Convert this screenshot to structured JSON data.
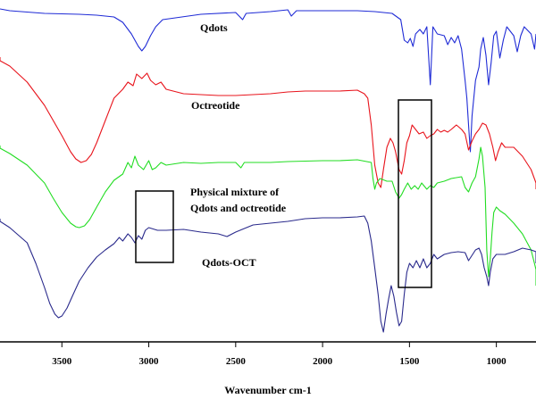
{
  "chart_data": {
    "type": "line",
    "title": "",
    "xlabel": "Wavenumber cm-1",
    "ylabel": "",
    "x_range": [
      4000,
      700
    ],
    "x_reversed": true,
    "x_ticks": [
      3500,
      3000,
      2500,
      2000,
      1500,
      1000
    ],
    "grid": false,
    "legend": "none",
    "series": [
      {
        "name": "Qdots",
        "color": "#1f2bd6",
        "points": [
          [
            4000,
            10
          ],
          [
            3800,
            12
          ],
          [
            3600,
            15
          ],
          [
            3400,
            16
          ],
          [
            3300,
            17
          ],
          [
            3200,
            19
          ],
          [
            3150,
            25
          ],
          [
            3100,
            38
          ],
          [
            3060,
            52
          ],
          [
            3040,
            57
          ],
          [
            3020,
            52
          ],
          [
            2990,
            40
          ],
          [
            2960,
            30
          ],
          [
            2920,
            22
          ],
          [
            2700,
            16
          ],
          [
            2500,
            14
          ],
          [
            2460,
            22
          ],
          [
            2440,
            15
          ],
          [
            2300,
            13
          ],
          [
            2200,
            11
          ],
          [
            2180,
            18
          ],
          [
            2150,
            12
          ],
          [
            2000,
            12
          ],
          [
            1800,
            12
          ],
          [
            1700,
            13
          ],
          [
            1600,
            15
          ],
          [
            1550,
            22
          ],
          [
            1530,
            45
          ],
          [
            1510,
            48
          ],
          [
            1495,
            43
          ],
          [
            1480,
            52
          ],
          [
            1465,
            38
          ],
          [
            1440,
            33
          ],
          [
            1420,
            38
          ],
          [
            1400,
            30
          ],
          [
            1380,
            95
          ],
          [
            1365,
            30
          ],
          [
            1340,
            38
          ],
          [
            1300,
            40
          ],
          [
            1280,
            50
          ],
          [
            1260,
            42
          ],
          [
            1240,
            48
          ],
          [
            1220,
            40
          ],
          [
            1200,
            55
          ],
          [
            1180,
            90
          ],
          [
            1170,
            110
          ],
          [
            1160,
            140
          ],
          [
            1150,
            170
          ],
          [
            1140,
            130
          ],
          [
            1120,
            90
          ],
          [
            1100,
            75
          ],
          [
            1090,
            55
          ],
          [
            1075,
            42
          ],
          [
            1060,
            62
          ],
          [
            1045,
            95
          ],
          [
            1030,
            70
          ],
          [
            1015,
            40
          ],
          [
            1000,
            35
          ],
          [
            980,
            65
          ],
          [
            960,
            45
          ],
          [
            940,
            30
          ],
          [
            900,
            40
          ],
          [
            880,
            58
          ],
          [
            860,
            40
          ],
          [
            840,
            30
          ],
          [
            800,
            38
          ],
          [
            780,
            55
          ],
          [
            760,
            38
          ],
          [
            700,
            38
          ]
        ]
      },
      {
        "name": "Octreotide",
        "color": "#e8141c",
        "points": [
          [
            4000,
            64
          ],
          [
            3900,
            68
          ],
          [
            3800,
            74
          ],
          [
            3700,
            92
          ],
          [
            3600,
            118
          ],
          [
            3500,
            152
          ],
          [
            3450,
            170
          ],
          [
            3420,
            178
          ],
          [
            3390,
            182
          ],
          [
            3360,
            180
          ],
          [
            3330,
            173
          ],
          [
            3300,
            160
          ],
          [
            3250,
            135
          ],
          [
            3200,
            110
          ],
          [
            3150,
            100
          ],
          [
            3120,
            92
          ],
          [
            3090,
            96
          ],
          [
            3070,
            83
          ],
          [
            3040,
            88
          ],
          [
            3010,
            82
          ],
          [
            2990,
            90
          ],
          [
            2960,
            95
          ],
          [
            2930,
            92
          ],
          [
            2900,
            100
          ],
          [
            2800,
            105
          ],
          [
            2600,
            107
          ],
          [
            2500,
            107
          ],
          [
            2300,
            105
          ],
          [
            2200,
            103
          ],
          [
            2100,
            102
          ],
          [
            1900,
            102
          ],
          [
            1800,
            101
          ],
          [
            1760,
            105
          ],
          [
            1740,
            110
          ],
          [
            1720,
            140
          ],
          [
            1700,
            185
          ],
          [
            1680,
            205
          ],
          [
            1665,
            210
          ],
          [
            1650,
            190
          ],
          [
            1630,
            165
          ],
          [
            1610,
            155
          ],
          [
            1595,
            160
          ],
          [
            1580,
            170
          ],
          [
            1560,
            190
          ],
          [
            1545,
            195
          ],
          [
            1530,
            180
          ],
          [
            1515,
            160
          ],
          [
            1500,
            152
          ],
          [
            1485,
            140
          ],
          [
            1465,
            145
          ],
          [
            1445,
            150
          ],
          [
            1420,
            148
          ],
          [
            1400,
            155
          ],
          [
            1380,
            152
          ],
          [
            1360,
            150
          ],
          [
            1340,
            145
          ],
          [
            1320,
            148
          ],
          [
            1300,
            146
          ],
          [
            1280,
            148
          ],
          [
            1260,
            145
          ],
          [
            1230,
            140
          ],
          [
            1200,
            145
          ],
          [
            1180,
            150
          ],
          [
            1160,
            168
          ],
          [
            1140,
            158
          ],
          [
            1120,
            150
          ],
          [
            1100,
            145
          ],
          [
            1080,
            138
          ],
          [
            1060,
            140
          ],
          [
            1040,
            150
          ],
          [
            1020,
            165
          ],
          [
            1005,
            180
          ],
          [
            990,
            170
          ],
          [
            970,
            160
          ],
          [
            950,
            165
          ],
          [
            900,
            165
          ],
          [
            850,
            175
          ],
          [
            800,
            190
          ],
          [
            760,
            205
          ],
          [
            740,
            212
          ]
        ]
      },
      {
        "name": "Physical mixture of Qdots and octreotide",
        "color": "#22dd22",
        "points": [
          [
            4000,
            163
          ],
          [
            3900,
            166
          ],
          [
            3800,
            172
          ],
          [
            3700,
            185
          ],
          [
            3600,
            205
          ],
          [
            3550,
            222
          ],
          [
            3500,
            238
          ],
          [
            3450,
            250
          ],
          [
            3420,
            254
          ],
          [
            3400,
            255
          ],
          [
            3370,
            253
          ],
          [
            3340,
            246
          ],
          [
            3300,
            232
          ],
          [
            3250,
            215
          ],
          [
            3200,
            202
          ],
          [
            3150,
            195
          ],
          [
            3120,
            182
          ],
          [
            3100,
            188
          ],
          [
            3080,
            175
          ],
          [
            3060,
            185
          ],
          [
            3030,
            190
          ],
          [
            3000,
            180
          ],
          [
            2980,
            190
          ],
          [
            2960,
            188
          ],
          [
            2930,
            182
          ],
          [
            2900,
            185
          ],
          [
            2800,
            182
          ],
          [
            2700,
            183
          ],
          [
            2600,
            182
          ],
          [
            2500,
            182
          ],
          [
            2470,
            188
          ],
          [
            2450,
            182
          ],
          [
            2300,
            182
          ],
          [
            2200,
            181
          ],
          [
            2000,
            180
          ],
          [
            1900,
            180
          ],
          [
            1800,
            179
          ],
          [
            1720,
            182
          ],
          [
            1710,
            200
          ],
          [
            1700,
            212
          ],
          [
            1690,
            205
          ],
          [
            1670,
            200
          ],
          [
            1630,
            203
          ],
          [
            1600,
            203
          ],
          [
            1580,
            215
          ],
          [
            1560,
            222
          ],
          [
            1545,
            218
          ],
          [
            1530,
            212
          ],
          [
            1510,
            205
          ],
          [
            1490,
            212
          ],
          [
            1470,
            208
          ],
          [
            1450,
            212
          ],
          [
            1430,
            205
          ],
          [
            1400,
            212
          ],
          [
            1380,
            208
          ],
          [
            1360,
            210
          ],
          [
            1340,
            205
          ],
          [
            1300,
            203
          ],
          [
            1260,
            200
          ],
          [
            1200,
            198
          ],
          [
            1180,
            210
          ],
          [
            1160,
            215
          ],
          [
            1140,
            205
          ],
          [
            1120,
            198
          ],
          [
            1100,
            178
          ],
          [
            1090,
            165
          ],
          [
            1080,
            175
          ],
          [
            1065,
            210
          ],
          [
            1055,
            280
          ],
          [
            1045,
            310
          ],
          [
            1035,
            290
          ],
          [
            1025,
            260
          ],
          [
            1015,
            238
          ],
          [
            1000,
            232
          ],
          [
            980,
            236
          ],
          [
            950,
            240
          ],
          [
            900,
            250
          ],
          [
            850,
            262
          ],
          [
            800,
            280
          ],
          [
            750,
            302
          ],
          [
            700,
            320
          ]
        ]
      },
      {
        "name": "Qdots-OCT",
        "color": "#2a2a8c",
        "points": [
          [
            4000,
            245
          ],
          [
            3900,
            248
          ],
          [
            3800,
            255
          ],
          [
            3700,
            272
          ],
          [
            3650,
            295
          ],
          [
            3600,
            322
          ],
          [
            3570,
            340
          ],
          [
            3540,
            352
          ],
          [
            3520,
            356
          ],
          [
            3500,
            354
          ],
          [
            3470,
            345
          ],
          [
            3440,
            332
          ],
          [
            3400,
            315
          ],
          [
            3350,
            300
          ],
          [
            3300,
            288
          ],
          [
            3250,
            280
          ],
          [
            3200,
            273
          ],
          [
            3170,
            266
          ],
          [
            3150,
            270
          ],
          [
            3120,
            262
          ],
          [
            3100,
            266
          ],
          [
            3080,
            272
          ],
          [
            3060,
            264
          ],
          [
            3040,
            268
          ],
          [
            3020,
            258
          ],
          [
            3000,
            255
          ],
          [
            2950,
            258
          ],
          [
            2900,
            258
          ],
          [
            2800,
            257
          ],
          [
            2700,
            260
          ],
          [
            2600,
            262
          ],
          [
            2550,
            265
          ],
          [
            2500,
            260
          ],
          [
            2450,
            256
          ],
          [
            2400,
            252
          ],
          [
            2300,
            250
          ],
          [
            2200,
            248
          ],
          [
            2100,
            245
          ],
          [
            2000,
            244
          ],
          [
            1900,
            244
          ],
          [
            1800,
            243
          ],
          [
            1760,
            242
          ],
          [
            1740,
            250
          ],
          [
            1720,
            270
          ],
          [
            1700,
            300
          ],
          [
            1680,
            330
          ],
          [
            1665,
            360
          ],
          [
            1650,
            372
          ],
          [
            1635,
            352
          ],
          [
            1620,
            335
          ],
          [
            1605,
            320
          ],
          [
            1590,
            332
          ],
          [
            1575,
            350
          ],
          [
            1560,
            365
          ],
          [
            1545,
            360
          ],
          [
            1530,
            330
          ],
          [
            1515,
            305
          ],
          [
            1500,
            295
          ],
          [
            1480,
            300
          ],
          [
            1460,
            292
          ],
          [
            1440,
            300
          ],
          [
            1420,
            290
          ],
          [
            1400,
            300
          ],
          [
            1380,
            295
          ],
          [
            1360,
            285
          ],
          [
            1340,
            290
          ],
          [
            1300,
            285
          ],
          [
            1260,
            283
          ],
          [
            1220,
            282
          ],
          [
            1180,
            283
          ],
          [
            1160,
            292
          ],
          [
            1140,
            286
          ],
          [
            1120,
            280
          ],
          [
            1100,
            278
          ],
          [
            1085,
            285
          ],
          [
            1070,
            300
          ],
          [
            1055,
            310
          ],
          [
            1045,
            320
          ],
          [
            1035,
            305
          ],
          [
            1020,
            290
          ],
          [
            1000,
            285
          ],
          [
            950,
            285
          ],
          [
            900,
            282
          ],
          [
            850,
            278
          ],
          [
            800,
            280
          ],
          [
            760,
            282
          ],
          [
            700,
            295
          ]
        ]
      }
    ],
    "annotations": [
      {
        "type": "rect",
        "x_range": [
          3160,
          2940
        ],
        "relative_to": "Qdots-OCT"
      },
      {
        "type": "rect",
        "x_range": [
          1540,
          1320
        ],
        "relative_to": "Octreotide"
      }
    ]
  },
  "labels": {
    "qdots": "Qdots",
    "octreotide": "Octreotide",
    "mixture_line1": "Physical mixture of",
    "mixture_line2": "Qdots and octreotide",
    "qdots_oct": "Qdots-OCT"
  }
}
